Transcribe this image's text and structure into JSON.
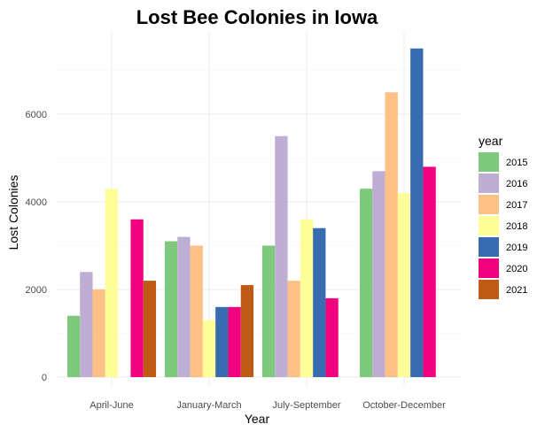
{
  "chart_data": {
    "type": "bar",
    "title": "Lost Bee Colonies in Iowa",
    "xlabel": "Year",
    "ylabel": "Lost Colonies",
    "ylim": [
      0,
      7600
    ],
    "yticks": [
      0,
      2000,
      4000,
      6000
    ],
    "grid": true,
    "legend_title": "year",
    "legend_position": "right",
    "categories": [
      "April-June",
      "January-March",
      "July-September",
      "October-December"
    ],
    "series": [
      {
        "name": "2015",
        "color": "#7fc97f",
        "values": [
          1400,
          3100,
          3000,
          4300
        ]
      },
      {
        "name": "2016",
        "color": "#beaed4",
        "values": [
          2400,
          3200,
          5500,
          4700
        ]
      },
      {
        "name": "2017",
        "color": "#fdc086",
        "values": [
          2000,
          3000,
          2200,
          6500
        ]
      },
      {
        "name": "2018",
        "color": "#ffff99",
        "values": [
          4300,
          1300,
          3600,
          4200
        ]
      },
      {
        "name": "2019",
        "color": "#386cb0",
        "values": [
          null,
          1600,
          3400,
          7500
        ]
      },
      {
        "name": "2020",
        "color": "#f0027f",
        "values": [
          3600,
          1600,
          1800,
          4800
        ]
      },
      {
        "name": "2021",
        "color": "#bf5b17",
        "values": [
          2200,
          2100,
          null,
          null
        ]
      }
    ]
  }
}
